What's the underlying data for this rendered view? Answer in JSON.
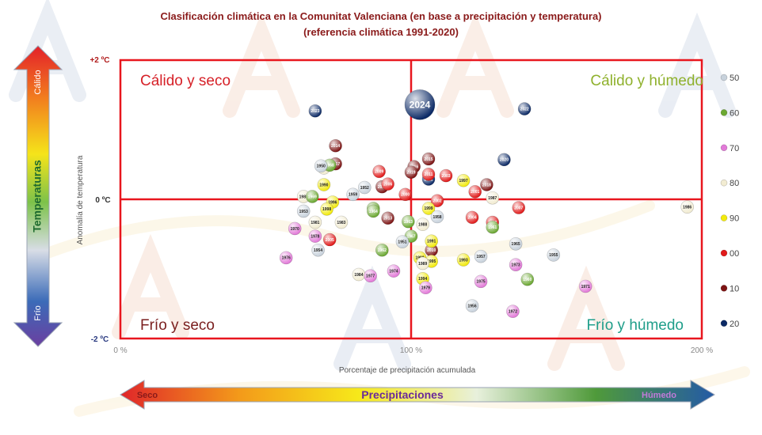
{
  "header": {
    "title": "Clasificación climática en la Comunitat Valenciana (en base a precipitación y temperatura)",
    "subtitle": "(referencia climática 1991-2020)"
  },
  "colors": {
    "frame": "#e8161e",
    "c50": "#c8d2dc",
    "c60": "#6ba832",
    "c70": "#e27ad8",
    "c80": "#f2ecd2",
    "c90": "#f2ea0e",
    "c00": "#e11a1a",
    "c10": "#7d1414",
    "c20": "#0c2a66"
  },
  "quadrants": {
    "top_left": "Cálido y seco",
    "top_right": "Cálido y húmedo",
    "bottom_left": "Frío y seco",
    "bottom_right": "Frío y húmedo"
  },
  "temperature_bar": {
    "label": "Temperaturas",
    "warm": "Cálido",
    "cold": "Frío"
  },
  "precip_bar": {
    "label": "Precipitaciones",
    "dry": "Seco",
    "wet": "Húmedo"
  },
  "chart_data": {
    "type": "scatter",
    "xlabel": "Porcentaje de precipitación acumulada",
    "ylabel": "Anomalía de temperatura",
    "xlim": [
      0,
      200
    ],
    "ylim": [
      -2,
      2
    ],
    "x_ticks": [
      "0 %",
      "100 %",
      "200 %"
    ],
    "y_ticks": [
      "+2 ºC",
      "0 ºC",
      "-2 ºC"
    ],
    "legend": [
      "50",
      "60",
      "70",
      "80",
      "90",
      "00",
      "10",
      "20"
    ],
    "highlight": "2024",
    "points": [
      {
        "year": "2024",
        "x": 103,
        "y": 1.36,
        "dec": "c20"
      },
      {
        "year": "2023",
        "x": 67,
        "y": 1.27,
        "dec": "c20"
      },
      {
        "year": "2022",
        "x": 139,
        "y": 1.3,
        "dec": "c20"
      },
      {
        "year": "2020",
        "x": 132,
        "y": 0.57,
        "dec": "c20"
      },
      {
        "year": "2021",
        "x": 106,
        "y": 0.29,
        "dec": "c20"
      },
      {
        "year": "2014",
        "x": 74,
        "y": 0.77,
        "dec": "c10"
      },
      {
        "year": "2017",
        "x": 74,
        "y": 0.51,
        "dec": "c10"
      },
      {
        "year": "2015",
        "x": 106,
        "y": 0.58,
        "dec": "c10"
      },
      {
        "year": "2016",
        "x": 101,
        "y": 0.47,
        "dec": "c10"
      },
      {
        "year": "2019",
        "x": 100,
        "y": 0.39,
        "dec": "c10"
      },
      {
        "year": "2018",
        "x": 126,
        "y": 0.21,
        "dec": "c10"
      },
      {
        "year": "2012",
        "x": 90,
        "y": 0.18,
        "dec": "c10"
      },
      {
        "year": "2013",
        "x": 92,
        "y": -0.27,
        "dec": "c10"
      },
      {
        "year": "2010",
        "x": 107,
        "y": -0.73,
        "dec": "c10"
      },
      {
        "year": "2011",
        "x": 106,
        "y": 0.36,
        "dec": "c00"
      },
      {
        "year": "2009",
        "x": 89,
        "y": 0.4,
        "dec": "c00"
      },
      {
        "year": "2006",
        "x": 92,
        "y": 0.22,
        "dec": "c00"
      },
      {
        "year": "2003",
        "x": 112,
        "y": 0.34,
        "dec": "c00"
      },
      {
        "year": "2000",
        "x": 98,
        "y": 0.07,
        "dec": "c00"
      },
      {
        "year": "2001",
        "x": 122,
        "y": 0.11,
        "dec": "c00"
      },
      {
        "year": "2002",
        "x": 109,
        "y": -0.02,
        "dec": "c00"
      },
      {
        "year": "2007",
        "x": 137,
        "y": -0.12,
        "dec": "c00"
      },
      {
        "year": "2004",
        "x": 121,
        "y": -0.26,
        "dec": "c00"
      },
      {
        "year": "2008",
        "x": 128,
        "y": -0.33,
        "dec": "c00"
      },
      {
        "year": "2005",
        "x": 72,
        "y": -0.58,
        "dec": "c00"
      },
      {
        "year": "1997",
        "x": 118,
        "y": 0.27,
        "dec": "c90"
      },
      {
        "year": "1990",
        "x": 70,
        "y": 0.21,
        "dec": "c90"
      },
      {
        "year": "1996",
        "x": 73,
        "y": -0.04,
        "dec": "c90"
      },
      {
        "year": "1998",
        "x": 71,
        "y": -0.14,
        "dec": "c90"
      },
      {
        "year": "1999",
        "x": 106,
        "y": -0.13,
        "dec": "c90"
      },
      {
        "year": "1995",
        "x": 107,
        "y": -0.89,
        "dec": "c90"
      },
      {
        "year": "1993",
        "x": 118,
        "y": -0.87,
        "dec": "c90"
      },
      {
        "year": "1992",
        "x": 103,
        "y": -0.84,
        "dec": "c90"
      },
      {
        "year": "1991",
        "x": 107,
        "y": -0.6,
        "dec": "c90"
      },
      {
        "year": "1994",
        "x": 104,
        "y": -1.14,
        "dec": "c90"
      },
      {
        "year": "1987",
        "x": 128,
        "y": 0.02,
        "dec": "c80"
      },
      {
        "year": "1986",
        "x": 195,
        "y": -0.11,
        "dec": "c80"
      },
      {
        "year": "1985",
        "x": 63,
        "y": 0.04,
        "dec": "c80"
      },
      {
        "year": "1983",
        "x": 76,
        "y": -0.33,
        "dec": "c80"
      },
      {
        "year": "1981",
        "x": 67,
        "y": -0.33,
        "dec": "c80"
      },
      {
        "year": "1988",
        "x": 104,
        "y": -0.36,
        "dec": "c80"
      },
      {
        "year": "1984",
        "x": 82,
        "y": -1.08,
        "dec": "c80"
      },
      {
        "year": "1989",
        "x": 104,
        "y": -0.92,
        "dec": "c80"
      },
      {
        "year": "1980",
        "x": 70,
        "y": 0.45,
        "dec": "c80"
      },
      {
        "year": "1976",
        "x": 57,
        "y": -0.84,
        "dec": "c70"
      },
      {
        "year": "1970",
        "x": 60,
        "y": -0.42,
        "dec": "c70"
      },
      {
        "year": "1978",
        "x": 67,
        "y": -0.53,
        "dec": "c70"
      },
      {
        "year": "1974",
        "x": 94,
        "y": -1.03,
        "dec": "c70"
      },
      {
        "year": "1977",
        "x": 86,
        "y": -1.1,
        "dec": "c70"
      },
      {
        "year": "1979",
        "x": 105,
        "y": -1.27,
        "dec": "c70"
      },
      {
        "year": "1975",
        "x": 124,
        "y": -1.18,
        "dec": "c70"
      },
      {
        "year": "1971",
        "x": 160,
        "y": -1.25,
        "dec": "c70"
      },
      {
        "year": "1972",
        "x": 135,
        "y": -1.61,
        "dec": "c70"
      },
      {
        "year": "1973",
        "x": 136,
        "y": -0.94,
        "dec": "c70"
      },
      {
        "year": "1968",
        "x": 72,
        "y": 0.49,
        "dec": "c60"
      },
      {
        "year": "1969",
        "x": 66,
        "y": 0.04,
        "dec": "c60"
      },
      {
        "year": "1966",
        "x": 87,
        "y": -0.13,
        "dec": "c60"
      },
      {
        "year": "1964",
        "x": 87,
        "y": -0.17,
        "dec": "c60"
      },
      {
        "year": "1963",
        "x": 99,
        "y": -0.32,
        "dec": "c60"
      },
      {
        "year": "1967",
        "x": 100,
        "y": -0.53,
        "dec": "c60"
      },
      {
        "year": "1962",
        "x": 90,
        "y": -0.73,
        "dec": "c60"
      },
      {
        "year": "1961",
        "x": 128,
        "y": -0.4,
        "dec": "c60"
      },
      {
        "year": "1960",
        "x": 140,
        "y": -1.15,
        "dec": "c60"
      },
      {
        "year": "1950",
        "x": 69,
        "y": 0.48,
        "dec": "c50"
      },
      {
        "year": "1952",
        "x": 84,
        "y": 0.17,
        "dec": "c50"
      },
      {
        "year": "1959",
        "x": 80,
        "y": 0.07,
        "dec": "c50"
      },
      {
        "year": "1953",
        "x": 63,
        "y": -0.17,
        "dec": "c50"
      },
      {
        "year": "1958",
        "x": 109,
        "y": -0.25,
        "dec": "c50"
      },
      {
        "year": "1951",
        "x": 97,
        "y": -0.61,
        "dec": "c50"
      },
      {
        "year": "1954",
        "x": 68,
        "y": -0.73,
        "dec": "c50"
      },
      {
        "year": "1957",
        "x": 124,
        "y": -0.82,
        "dec": "c50"
      },
      {
        "year": "1955",
        "x": 149,
        "y": -0.8,
        "dec": "c50"
      },
      {
        "year": "1956",
        "x": 121,
        "y": -1.53,
        "dec": "c50"
      },
      {
        "year": "1965",
        "x": 136,
        "y": -0.64,
        "dec": "c50"
      }
    ]
  }
}
